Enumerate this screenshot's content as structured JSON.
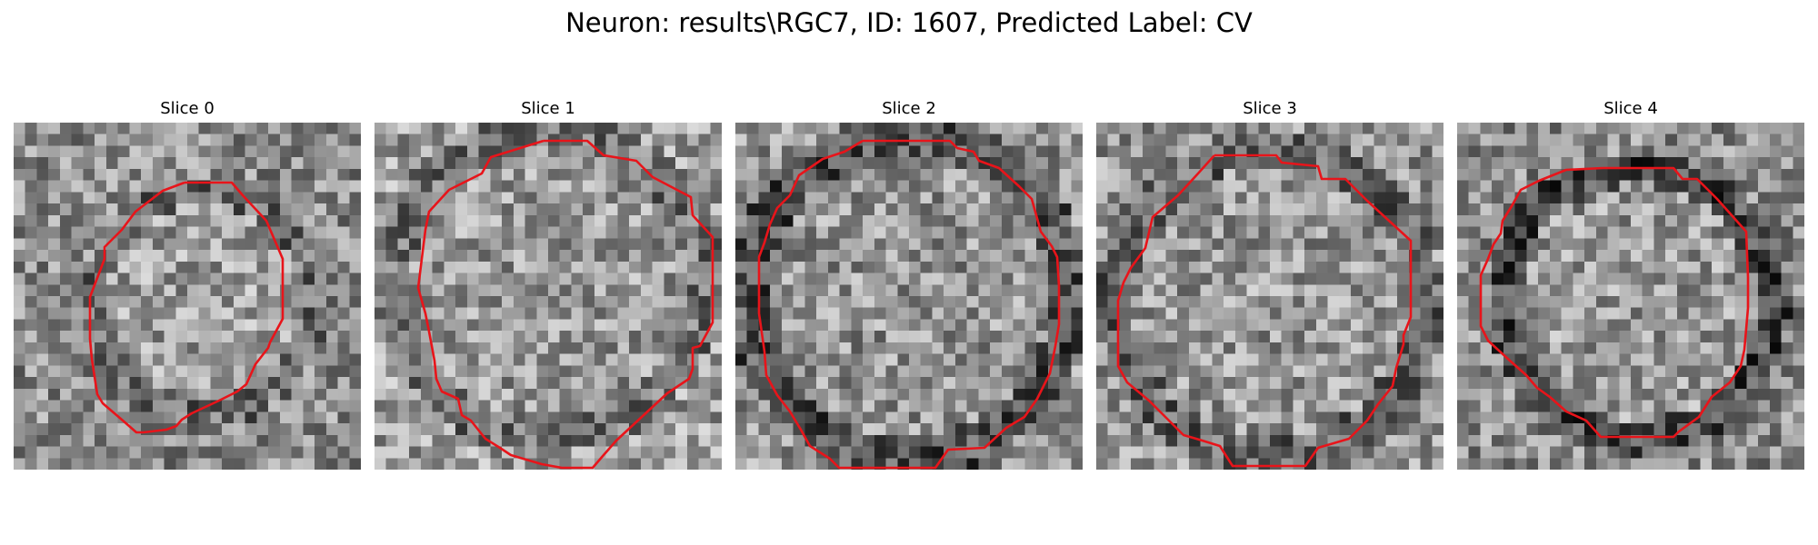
{
  "figure": {
    "title": "Neuron: results\\RGC7, ID: 1607, Predicted Label: CV"
  },
  "slices": [
    {
      "title": "Slice 0"
    },
    {
      "title": "Slice 1"
    },
    {
      "title": "Slice 2"
    },
    {
      "title": "Slice 3"
    },
    {
      "title": "Slice 4"
    }
  ],
  "colors": {
    "contour": "#e8141a",
    "background": "#ffffff",
    "colormap": "gray"
  }
}
